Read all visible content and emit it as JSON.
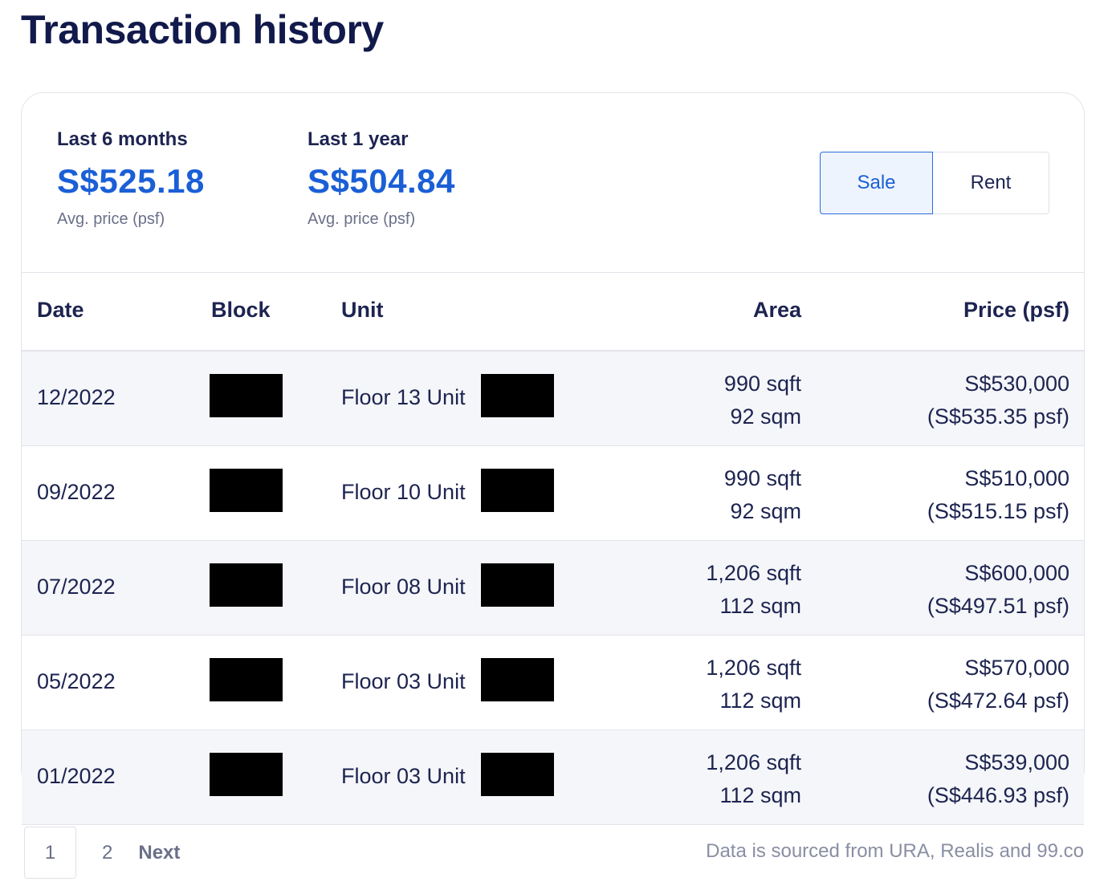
{
  "page": {
    "title": "Transaction history"
  },
  "summary": {
    "stats": [
      {
        "period": "Last 6 months",
        "value": "S$525.18",
        "caption": "Avg. price (psf)"
      },
      {
        "period": "Last 1 year",
        "value": "S$504.84",
        "caption": "Avg. price (psf)"
      }
    ],
    "toggle": {
      "sale": "Sale",
      "rent": "Rent",
      "selected": "Sale"
    }
  },
  "table": {
    "headers": {
      "date": "Date",
      "block": "Block",
      "unit": "Unit",
      "area": "Area",
      "price": "Price (psf)"
    },
    "rows": [
      {
        "date": "12/2022",
        "unit": "Floor 13 Unit",
        "area_sqft": "990 sqft",
        "area_sqm": "92 sqm",
        "price": "S$530,000",
        "psf": "(S$535.35 psf)"
      },
      {
        "date": "09/2022",
        "unit": "Floor 10 Unit",
        "area_sqft": "990 sqft",
        "area_sqm": "92 sqm",
        "price": "S$510,000",
        "psf": "(S$515.15 psf)"
      },
      {
        "date": "07/2022",
        "unit": "Floor 08 Unit",
        "area_sqft": "1,206 sqft",
        "area_sqm": "112 sqm",
        "price": "S$600,000",
        "psf": "(S$497.51 psf)"
      },
      {
        "date": "05/2022",
        "unit": "Floor 03 Unit",
        "area_sqft": "1,206 sqft",
        "area_sqm": "112 sqm",
        "price": "S$570,000",
        "psf": "(S$472.64 psf)"
      },
      {
        "date": "01/2022",
        "unit": "Floor 03 Unit",
        "area_sqft": "1,206 sqft",
        "area_sqm": "112 sqm",
        "price": "S$539,000",
        "psf": "(S$446.93 psf)"
      }
    ]
  },
  "pagination": {
    "current": "1",
    "page2": "2",
    "next": "Next"
  },
  "footer": {
    "source": "Data is sourced from URA, Realis and 99.co"
  },
  "colors": {
    "accent": "#1a5fd6",
    "title": "#121a4b",
    "text": "#1d2450",
    "muted": "#6b7089",
    "redaction": "#000000"
  }
}
